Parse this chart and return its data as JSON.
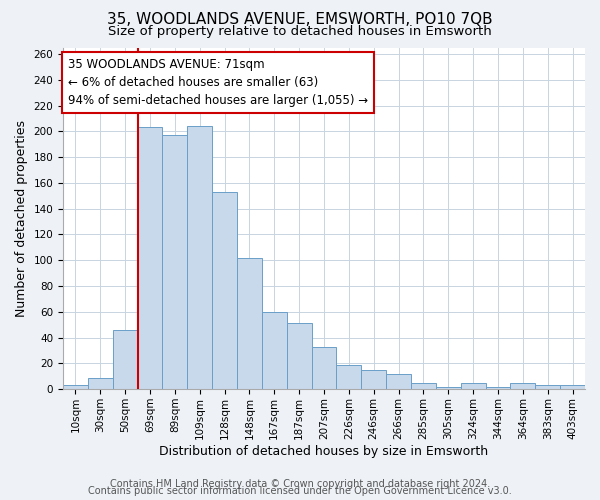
{
  "title": "35, WOODLANDS AVENUE, EMSWORTH, PO10 7QB",
  "subtitle": "Size of property relative to detached houses in Emsworth",
  "xlabel": "Distribution of detached houses by size in Emsworth",
  "ylabel": "Number of detached properties",
  "bar_labels": [
    "10sqm",
    "30sqm",
    "50sqm",
    "69sqm",
    "89sqm",
    "109sqm",
    "128sqm",
    "148sqm",
    "167sqm",
    "187sqm",
    "207sqm",
    "226sqm",
    "246sqm",
    "266sqm",
    "285sqm",
    "305sqm",
    "324sqm",
    "344sqm",
    "364sqm",
    "383sqm",
    "403sqm"
  ],
  "bar_values": [
    3,
    9,
    46,
    203,
    197,
    204,
    153,
    102,
    60,
    51,
    33,
    19,
    15,
    12,
    5,
    2,
    5,
    2,
    5,
    3,
    3
  ],
  "bar_color": "#c9d9ec",
  "bar_edge_color": "#6a9fc8",
  "highlight_index": 3,
  "highlight_line_color": "#cc0000",
  "annotation_text": "35 WOODLANDS AVENUE: 71sqm\n← 6% of detached houses are smaller (63)\n94% of semi-detached houses are larger (1,055) →",
  "annotation_box_color": "#ffffff",
  "annotation_box_edge": "#cc0000",
  "ylim": [
    0,
    265
  ],
  "yticks": [
    0,
    20,
    40,
    60,
    80,
    100,
    120,
    140,
    160,
    180,
    200,
    220,
    240,
    260
  ],
  "footer1": "Contains HM Land Registry data © Crown copyright and database right 2024.",
  "footer2": "Contains public sector information licensed under the Open Government Licence v3.0.",
  "bg_color": "#eef2f7",
  "plot_bg_color": "#ffffff",
  "title_fontsize": 11,
  "subtitle_fontsize": 9.5,
  "axis_label_fontsize": 9,
  "tick_fontsize": 7.5,
  "annotation_fontsize": 8.5,
  "footer_fontsize": 7
}
